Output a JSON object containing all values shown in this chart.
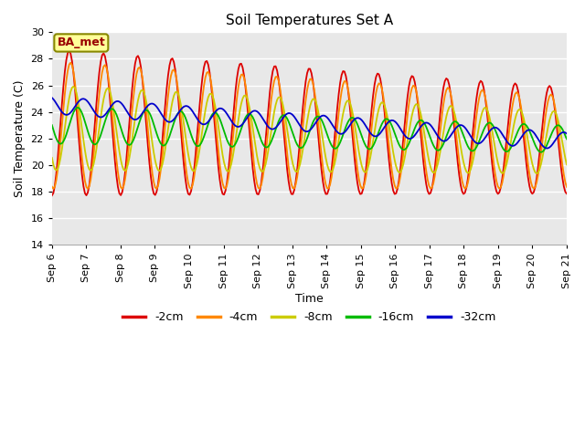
{
  "title": "Soil Temperatures Set A",
  "xlabel": "Time",
  "ylabel": "Soil Temperature (C)",
  "ylim": [
    14,
    30
  ],
  "annotation": "BA_met",
  "line_colors": {
    "-2cm": "#dd0000",
    "-4cm": "#ff8800",
    "-8cm": "#cccc00",
    "-16cm": "#00bb00",
    "-32cm": "#0000cc"
  },
  "line_labels": [
    "-2cm",
    "-4cm",
    "-8cm",
    "-16cm",
    "-32cm"
  ],
  "x_tick_labels": [
    "Sep 6",
    "Sep 7",
    "Sep 8",
    "Sep 9",
    "Sep 10",
    "Sep 11",
    "Sep 12",
    "Sep 13",
    "Sep 14",
    "Sep 15",
    "Sep 16",
    "Sep 17",
    "Sep 18",
    "Sep 19",
    "Sep 20",
    "Sep 21"
  ],
  "background_color": "#e8e8e8",
  "fig_background": "#ffffff"
}
